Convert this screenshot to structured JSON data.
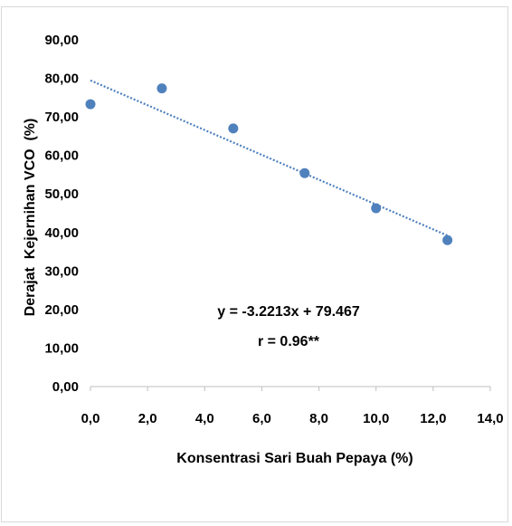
{
  "chart_data": {
    "type": "scatter",
    "title": "",
    "xlabel": "Konsentrasi Sari Buah Pepaya (%)",
    "ylabel": "Derajat  Kejernihan VCO  (%)",
    "x_ticks": [
      "0,0",
      "2,0",
      "4,0",
      "6,0",
      "8,0",
      "10,0",
      "12,0",
      "14,0"
    ],
    "y_ticks": [
      "0,00",
      "10,00",
      "20,00",
      "30,00",
      "40,00",
      "50,00",
      "60,00",
      "70,00",
      "80,00",
      "90,00"
    ],
    "xlim": [
      0,
      14
    ],
    "ylim": [
      0,
      90
    ],
    "grid": false,
    "legend": "none",
    "series": [
      {
        "x": [
          0,
          2.5,
          5,
          7.5,
          10,
          12.5
        ],
        "y": [
          73.3,
          77.4,
          67.0,
          55.4,
          46.3,
          38.0
        ],
        "color": "#4f81bd"
      }
    ],
    "trendline": {
      "slope": -3.2213,
      "intercept": 79.467,
      "color": "#4f81bd",
      "style": "dotted"
    },
    "annotations": {
      "equation": "y = -3.2213x + 79.467",
      "r_value": "r = 0.96**"
    }
  }
}
